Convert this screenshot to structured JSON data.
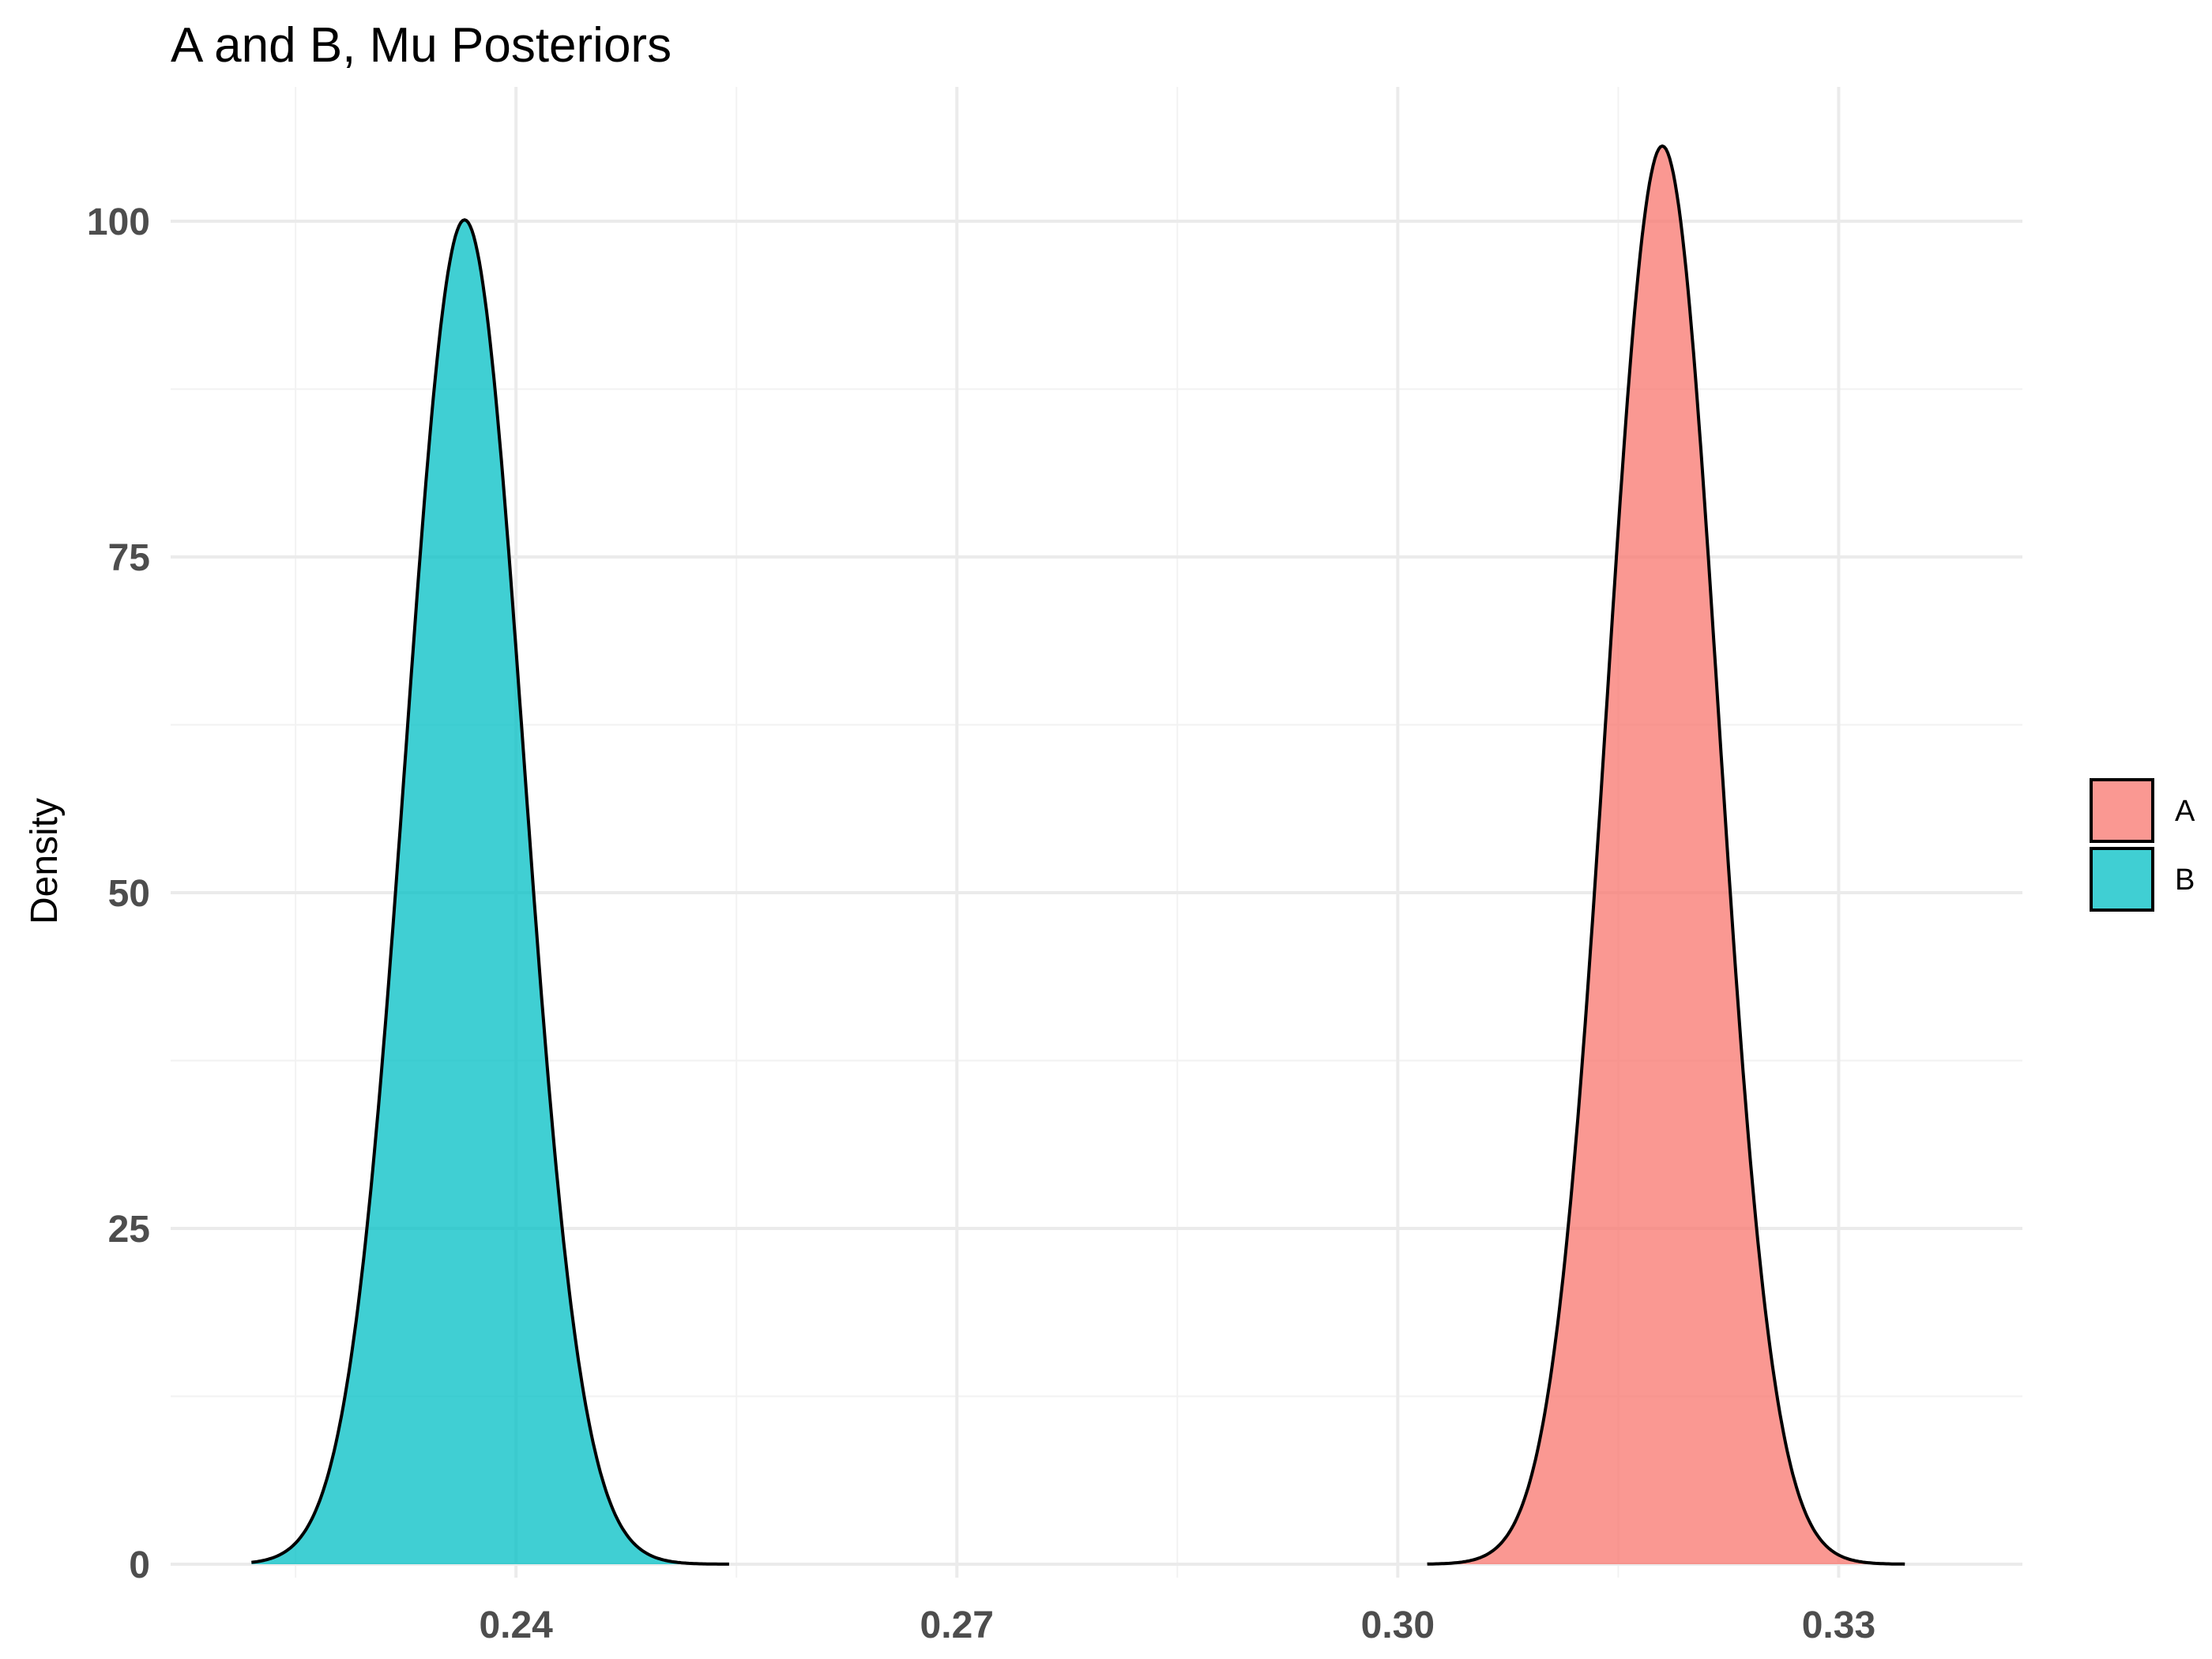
{
  "chart_data": {
    "type": "area",
    "title": "A and B, Mu Posteriors",
    "xlabel": "",
    "ylabel": "Density",
    "xlim": [
      0.2165,
      0.3425
    ],
    "ylim": [
      -1,
      110
    ],
    "x_ticks": [
      {
        "value": 0.24,
        "label": "0.24"
      },
      {
        "value": 0.27,
        "label": "0.27"
      },
      {
        "value": 0.3,
        "label": "0.30"
      },
      {
        "value": 0.33,
        "label": "0.33"
      }
    ],
    "x_minor": [
      0.225,
      0.255,
      0.285,
      0.315
    ],
    "y_ticks": [
      {
        "value": 0,
        "label": "0"
      },
      {
        "value": 25,
        "label": "25"
      },
      {
        "value": 50,
        "label": "50"
      },
      {
        "value": 75,
        "label": "75"
      },
      {
        "value": 100,
        "label": "100"
      }
    ],
    "y_minor": [
      12.5,
      37.5,
      62.5,
      87.5
    ],
    "grid": true,
    "legend": {
      "position": "right",
      "title": "",
      "entries": [
        "A",
        "B"
      ]
    },
    "series": [
      {
        "name": "A",
        "color": "#f8766d",
        "opacity": 0.75,
        "x_range": [
          0.302,
          0.3345
        ],
        "peak": {
          "x": 0.318,
          "y": 105.6
        },
        "sd": 0.00378
      },
      {
        "name": "B",
        "color": "#00bfc4",
        "opacity": 0.75,
        "x_range": [
          0.222,
          0.2545
        ],
        "peak": {
          "x": 0.2365,
          "y": 100.1
        },
        "sd": 0.00399
      }
    ]
  }
}
